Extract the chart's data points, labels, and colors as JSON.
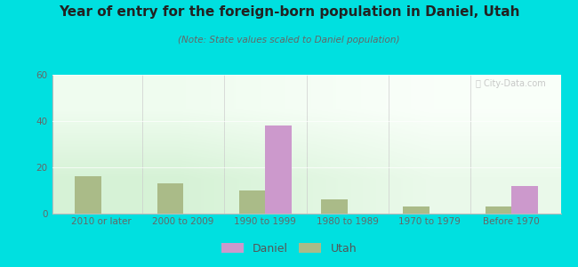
{
  "title": "Year of entry for the foreign-born population in Daniel, Utah",
  "subtitle": "(Note: State values scaled to Daniel population)",
  "categories": [
    "2010 or later",
    "2000 to 2009",
    "1990 to 1999",
    "1980 to 1989",
    "1970 to 1979",
    "Before 1970"
  ],
  "daniel_values": [
    0,
    0,
    38,
    0,
    0,
    12
  ],
  "utah_values": [
    16,
    13,
    10,
    6,
    3,
    3
  ],
  "daniel_color": "#cc99cc",
  "utah_color": "#aabb88",
  "background_outer": "#00e0e0",
  "ylim": [
    0,
    60
  ],
  "yticks": [
    0,
    20,
    40,
    60
  ],
  "bar_width": 0.32,
  "title_fontsize": 11,
  "subtitle_fontsize": 7.5,
  "tick_fontsize": 7.5,
  "legend_fontsize": 9
}
